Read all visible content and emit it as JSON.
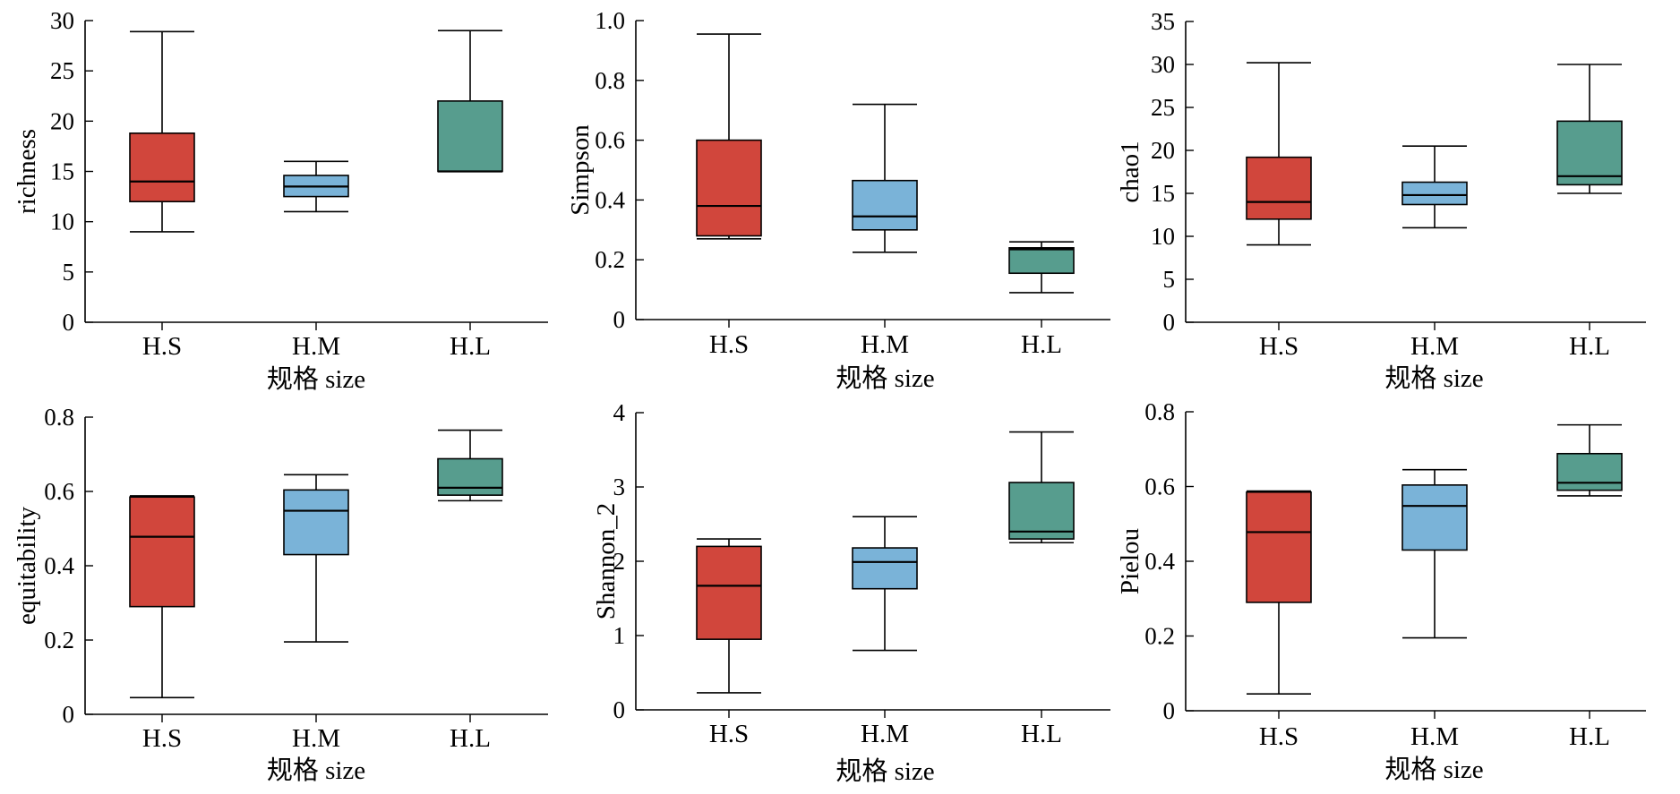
{
  "colors": {
    "H.S": "#d1463c",
    "H.M": "#7ab3d8",
    "H.L": "#579d8e"
  },
  "chart_data": [
    {
      "type": "box",
      "ylabel": "richness",
      "xlabel": "规格 size",
      "categories": [
        "H.S",
        "H.M",
        "H.L"
      ],
      "ylim": [
        0,
        30
      ],
      "yticks": [
        0,
        5,
        10,
        15,
        20,
        25,
        30
      ],
      "ytick_labels": [
        "0",
        "5",
        "10",
        "15",
        "20",
        "25",
        "30"
      ],
      "boxes": [
        {
          "min": 9,
          "q1": 12,
          "median": 14,
          "q3": 18.8,
          "max": 28.9
        },
        {
          "min": 11,
          "q1": 12.5,
          "median": 13.5,
          "q3": 14.6,
          "max": 16
        },
        {
          "min": 15,
          "q1": 15,
          "median": 15,
          "q3": 22,
          "max": 29
        }
      ]
    },
    {
      "type": "box",
      "ylabel": "Simpson",
      "xlabel": "规格 size",
      "categories": [
        "H.S",
        "H.M",
        "H.L"
      ],
      "ylim": [
        0,
        1.0
      ],
      "yticks": [
        0,
        0.2,
        0.4,
        0.6,
        0.8,
        1.0
      ],
      "ytick_labels": [
        "0",
        "0.2",
        "0.4",
        "0.6",
        "0.8",
        "1.0"
      ],
      "boxes": [
        {
          "min": 0.27,
          "q1": 0.28,
          "median": 0.38,
          "q3": 0.6,
          "max": 0.955
        },
        {
          "min": 0.225,
          "q1": 0.3,
          "median": 0.345,
          "q3": 0.465,
          "max": 0.72
        },
        {
          "min": 0.09,
          "q1": 0.155,
          "median": 0.235,
          "q3": 0.24,
          "max": 0.26
        }
      ]
    },
    {
      "type": "box",
      "ylabel": "chao1",
      "xlabel": "规格 size",
      "categories": [
        "H.S",
        "H.M",
        "H.L"
      ],
      "ylim": [
        0,
        35
      ],
      "yticks": [
        0,
        5,
        10,
        15,
        20,
        25,
        30,
        35
      ],
      "ytick_labels": [
        "0",
        "5",
        "10",
        "15",
        "20",
        "25",
        "30",
        "35"
      ],
      "boxes": [
        {
          "min": 9,
          "q1": 12,
          "median": 14,
          "q3": 19.2,
          "max": 30.2
        },
        {
          "min": 11,
          "q1": 13.7,
          "median": 14.8,
          "q3": 16.3,
          "max": 20.5
        },
        {
          "min": 15,
          "q1": 16,
          "median": 17,
          "q3": 23.4,
          "max": 30
        }
      ]
    },
    {
      "type": "box",
      "ylabel": "equitability",
      "xlabel": "规格 size",
      "categories": [
        "H.S",
        "H.M",
        "H.L"
      ],
      "ylim": [
        0,
        0.8
      ],
      "yticks": [
        0,
        0.2,
        0.4,
        0.6,
        0.8
      ],
      "ytick_labels": [
        "0",
        "0.2",
        "0.4",
        "0.6",
        "0.8"
      ],
      "boxes": [
        {
          "min": 0.045,
          "q1": 0.29,
          "median": 0.478,
          "q3": 0.585,
          "max": 0.588
        },
        {
          "min": 0.195,
          "q1": 0.43,
          "median": 0.548,
          "q3": 0.604,
          "max": 0.645
        },
        {
          "min": 0.575,
          "q1": 0.59,
          "median": 0.61,
          "q3": 0.688,
          "max": 0.765
        }
      ]
    },
    {
      "type": "box",
      "ylabel": "Shannon_2",
      "xlabel": "规格 size",
      "categories": [
        "H.S",
        "H.M",
        "H.L"
      ],
      "ylim": [
        0,
        4
      ],
      "yticks": [
        0,
        1,
        2,
        3,
        4
      ],
      "ytick_labels": [
        "0",
        "1",
        "2",
        "3",
        "4"
      ],
      "boxes": [
        {
          "min": 0.23,
          "q1": 0.95,
          "median": 1.67,
          "q3": 2.2,
          "max": 2.3
        },
        {
          "min": 0.8,
          "q1": 1.63,
          "median": 1.99,
          "q3": 2.18,
          "max": 2.6
        },
        {
          "min": 2.25,
          "q1": 2.3,
          "median": 2.4,
          "q3": 3.06,
          "max": 3.74
        }
      ]
    },
    {
      "type": "box",
      "ylabel": "Pielou",
      "xlabel": "规格 size",
      "categories": [
        "H.S",
        "H.M",
        "H.L"
      ],
      "ylim": [
        0,
        0.8
      ],
      "yticks": [
        0,
        0.2,
        0.4,
        0.6,
        0.8
      ],
      "ytick_labels": [
        "0",
        "0.2",
        "0.4",
        "0.6",
        "0.8"
      ],
      "boxes": [
        {
          "min": 0.045,
          "q1": 0.29,
          "median": 0.478,
          "q3": 0.585,
          "max": 0.588
        },
        {
          "min": 0.195,
          "q1": 0.43,
          "median": 0.548,
          "q3": 0.604,
          "max": 0.645
        },
        {
          "min": 0.575,
          "q1": 0.59,
          "median": 0.61,
          "q3": 0.688,
          "max": 0.765
        }
      ]
    }
  ]
}
